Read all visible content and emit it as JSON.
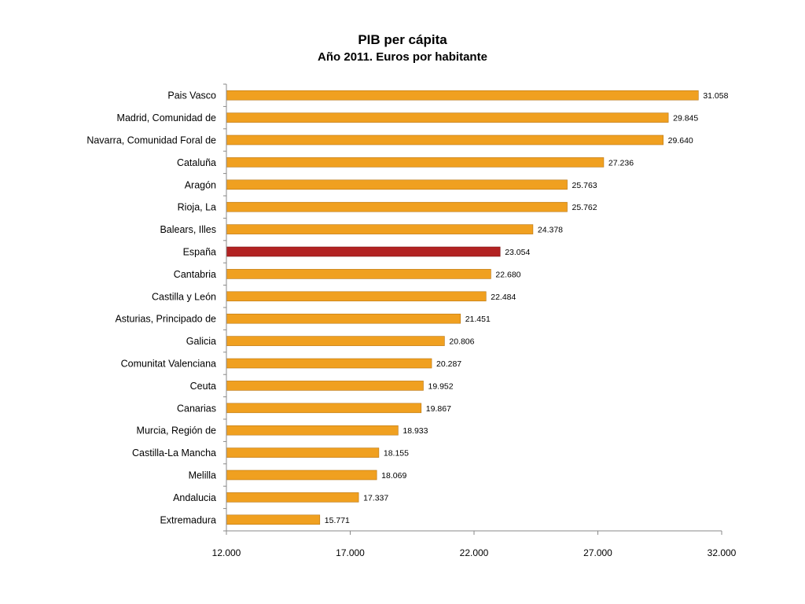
{
  "chart_data": {
    "type": "bar",
    "orientation": "horizontal",
    "title": "PIB per cápita",
    "subtitle": "Año 2011. Euros por habitante",
    "categories": [
      "Pais Vasco",
      "Madrid, Comunidad de",
      "Navarra, Comunidad Foral de",
      "Cataluña",
      "Aragón",
      "Rioja, La",
      "Balears, Illes",
      "España",
      "Cantabria",
      "Castilla y León",
      "Asturias, Principado de",
      "Galicia",
      "Comunitat Valenciana",
      "Ceuta",
      "Canarias",
      "Murcia, Región de",
      "Castilla-La Mancha",
      "Melilla",
      "Andalucia",
      "Extremadura"
    ],
    "values": [
      31058,
      29845,
      29640,
      27236,
      25763,
      25762,
      24378,
      23054,
      22680,
      22484,
      21451,
      20806,
      20287,
      19952,
      19867,
      18933,
      18155,
      18069,
      17337,
      15771
    ],
    "value_labels": [
      "31.058",
      "29.845",
      "29.640",
      "27.236",
      "25.763",
      "25.762",
      "24.378",
      "23.054",
      "22.680",
      "22.484",
      "21.451",
      "20.806",
      "20.287",
      "19.952",
      "19.867",
      "18.933",
      "18.155",
      "18.069",
      "17.337",
      "15.771"
    ],
    "xlim": [
      12000,
      32000
    ],
    "x_ticks": [
      12000,
      17000,
      22000,
      27000,
      32000
    ],
    "x_tick_labels": [
      "12.000",
      "17.000",
      "22.000",
      "27.000",
      "32.000"
    ],
    "bar_color": "#F0A020",
    "highlight_category": "España",
    "highlight_color": "#B22222",
    "grid": false,
    "legend": false
  }
}
